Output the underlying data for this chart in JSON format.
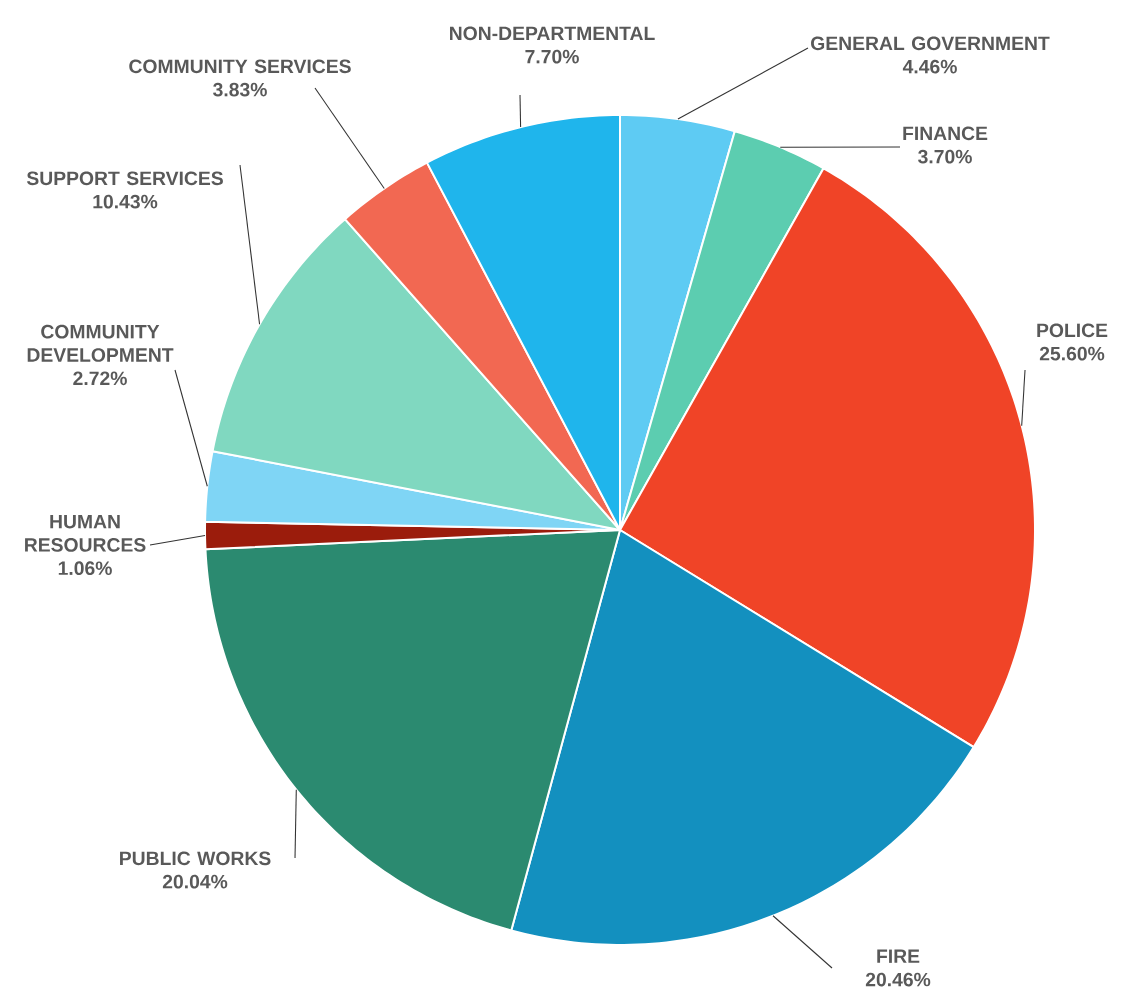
{
  "chart_data": {
    "type": "pie",
    "categories": [
      "GENERAL GOVERNMENT",
      "FINANCE",
      "POLICE",
      "FIRE",
      "PUBLIC WORKS",
      "HUMAN RESOURCES",
      "COMMUNITY DEVELOPMENT",
      "SUPPORT SERVICES",
      "COMMUNITY SERVICES",
      "NON-DEPARTMENTAL"
    ],
    "values": [
      4.46,
      3.7,
      25.6,
      20.46,
      20.04,
      1.06,
      2.72,
      10.43,
      3.83,
      7.7
    ],
    "colors": [
      "#5ecbf3",
      "#5ccdb0",
      "#f04427",
      "#1390bf",
      "#2b8a70",
      "#9b1c0c",
      "#7fd5f5",
      "#80d8c0",
      "#f26852",
      "#1fb5ec"
    ],
    "value_labels": [
      "4.46%",
      "3.70%",
      "25.60%",
      "20.46%",
      "20.04%",
      "1.06%",
      "2.72%",
      "10.43%",
      "3.83%",
      "7.70%"
    ]
  }
}
